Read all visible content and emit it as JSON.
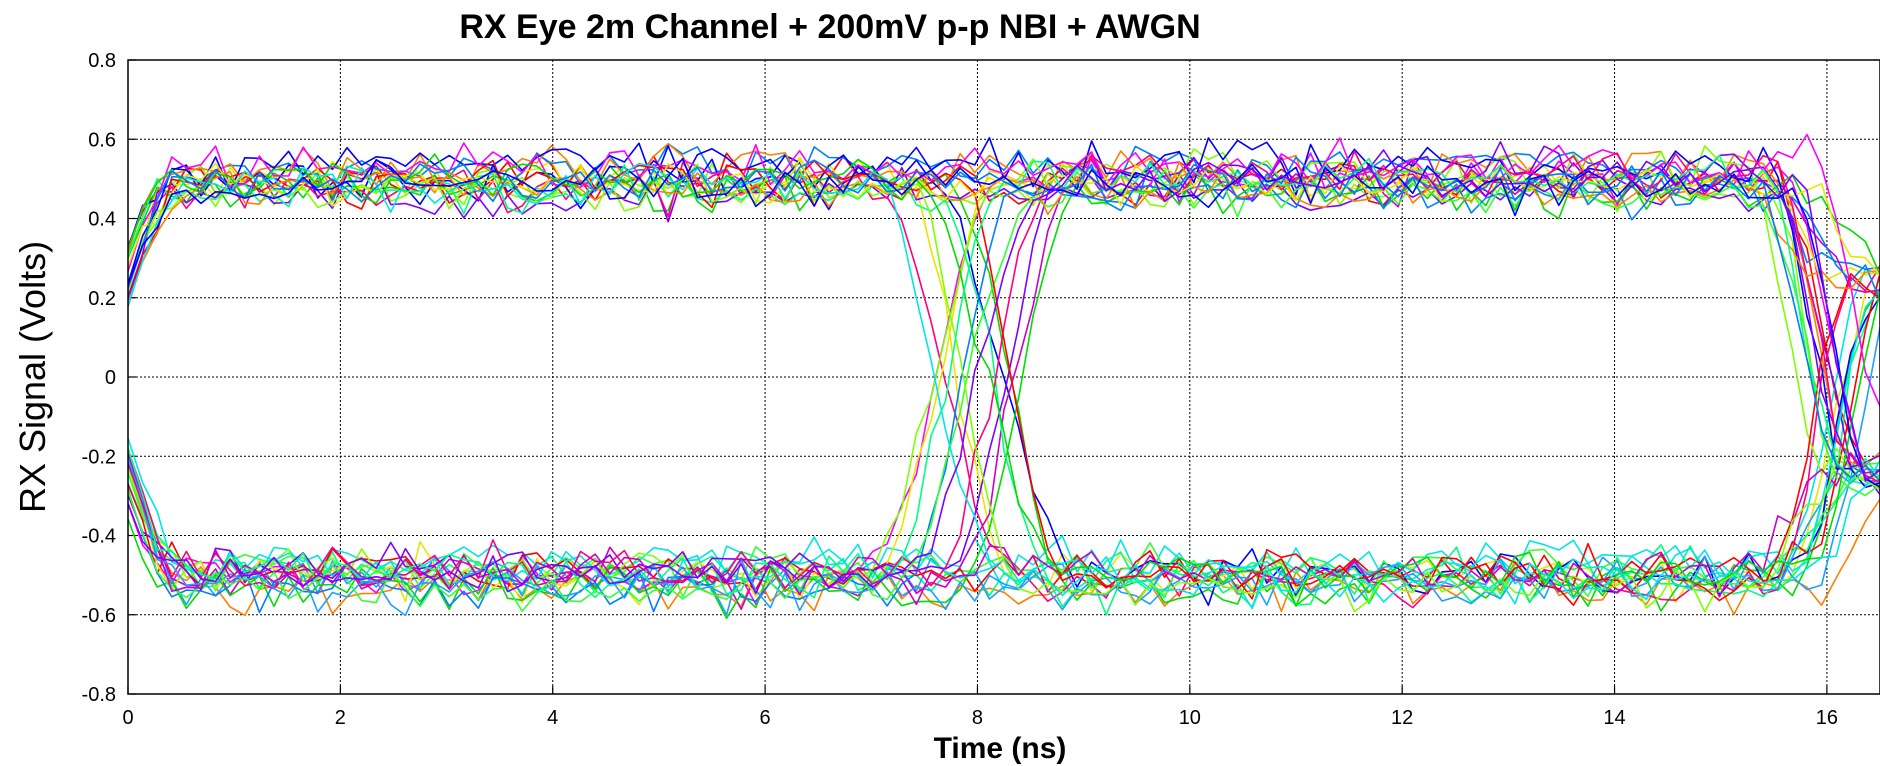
{
  "chart_data": {
    "type": "line",
    "title": "RX Eye 2m Channel + 200mV p-p NBI + AWGN",
    "xlabel": "Time (ns)",
    "ylabel": "RX Signal (Volts)",
    "xlim": [
      0,
      16.5
    ],
    "ylim": [
      -0.8,
      0.8
    ],
    "xticks": [
      0,
      2,
      4,
      6,
      8,
      10,
      12,
      14,
      16
    ],
    "yticks": [
      -0.8,
      -0.6,
      -0.4,
      -0.2,
      0,
      0.2,
      0.4,
      0.6,
      0.8
    ],
    "xtick_labels": [
      "0",
      "2",
      "4",
      "6",
      "8",
      "10",
      "12",
      "14",
      "16"
    ],
    "ytick_labels": [
      "-0.8",
      "-0.6",
      "-0.4",
      "-0.2",
      "0",
      "0.2",
      "0.4",
      "0.6",
      "0.8"
    ],
    "grid": true,
    "legend": "none",
    "bit_period_ns": 8,
    "crossing_points_ns": [
      0,
      8,
      16
    ],
    "high_level_v": 0.5,
    "low_level_v": -0.5,
    "noise_spread_v": 0.25,
    "trace_count": 40,
    "samples_per_trace": 120,
    "colors": [
      "#ff0000",
      "#ff7f00",
      "#e6e600",
      "#7fff00",
      "#00dd00",
      "#00ff7f",
      "#00e6e6",
      "#007fff",
      "#0000ff",
      "#7f00ff",
      "#ff00ff",
      "#ff007f",
      "#1f9fff",
      "#33ff33",
      "#cc00cc"
    ]
  }
}
